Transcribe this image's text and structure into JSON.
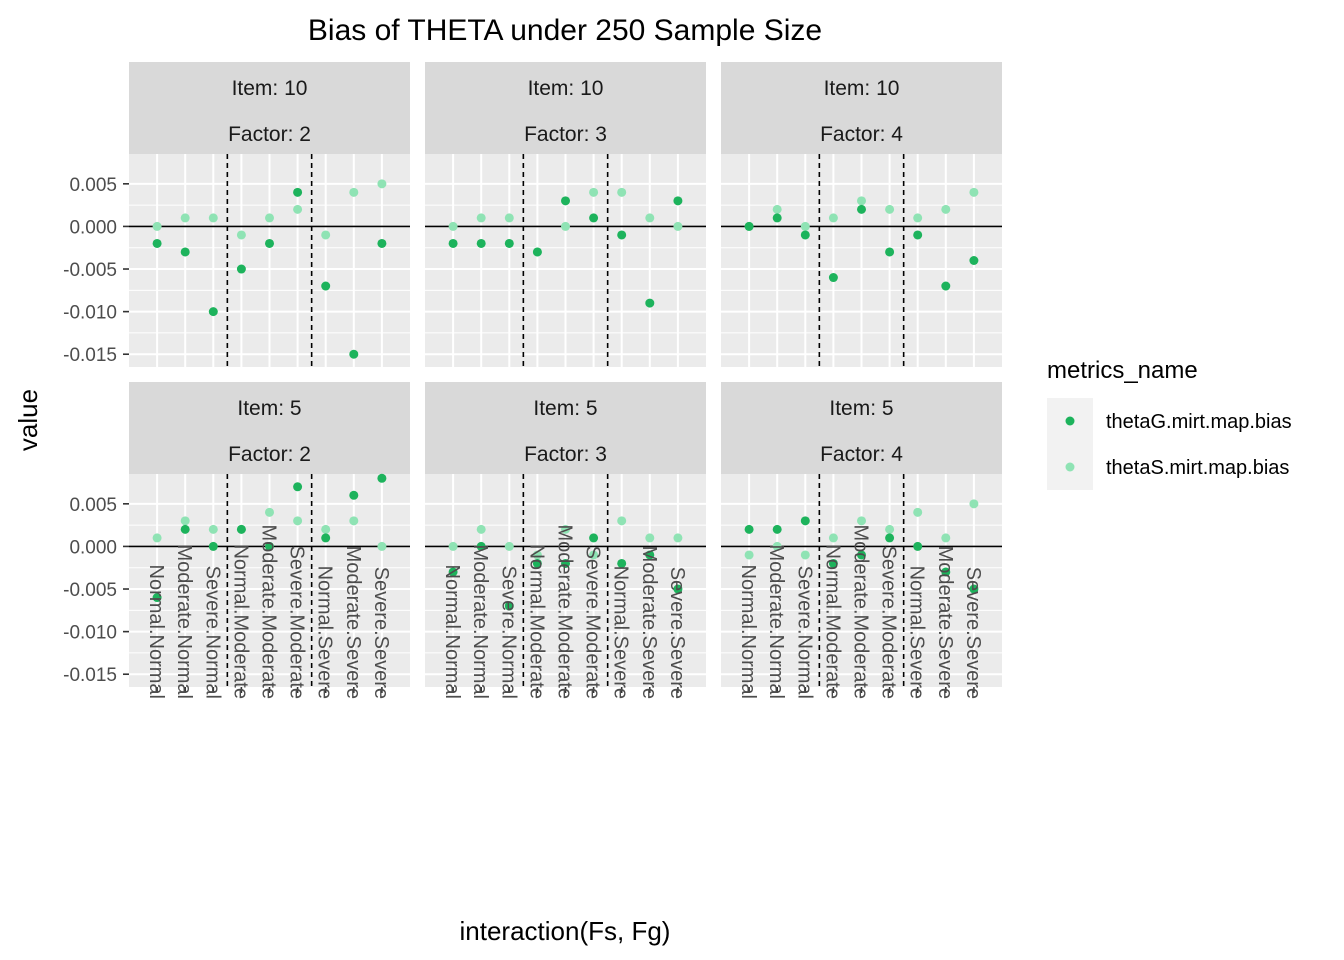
{
  "chart_data": {
    "type": "scatter",
    "title": "Bias of THETA under 250 Sample Size",
    "xlabel": "interaction(Fs, Fg)",
    "ylabel": "value",
    "ylim": [
      -0.0165,
      0.0085
    ],
    "yticks": [
      0.005,
      0.0,
      -0.005,
      -0.01,
      -0.015
    ],
    "ytick_labels": [
      "0.005",
      "0.000",
      "-0.005",
      "-0.010",
      "-0.015"
    ],
    "categories": [
      "Normal.Normal",
      "Moderate.Normal",
      "Severe.Normal",
      "Normal.Moderate",
      "Moderate.Moderate",
      "Severe.Moderate",
      "Normal.Severe",
      "Moderate.Severe",
      "Severe.Severe"
    ],
    "grid": true,
    "hline": 0,
    "vlines_between": [
      3,
      6
    ],
    "legend": {
      "title": "metrics_name",
      "position": "right",
      "entries": [
        {
          "name": "thetaG.mirt.map.bias",
          "color": "#1db35c"
        },
        {
          "name": "thetaS.mirt.map.bias",
          "color": "#8fe3b4"
        }
      ]
    },
    "facets": [
      {
        "strip": [
          "Item: 10",
          "Factor: 2"
        ],
        "thetaG": [
          -0.002,
          -0.003,
          -0.01,
          -0.005,
          -0.002,
          0.004,
          -0.007,
          -0.015,
          -0.002
        ],
        "thetaS": [
          0.0,
          0.001,
          0.001,
          -0.001,
          0.001,
          0.002,
          -0.001,
          0.004,
          0.005
        ]
      },
      {
        "strip": [
          "Item: 10",
          "Factor: 3"
        ],
        "thetaG": [
          -0.002,
          -0.002,
          -0.002,
          -0.003,
          0.003,
          0.001,
          -0.001,
          -0.009,
          0.003
        ],
        "thetaS": [
          0.0,
          0.001,
          0.001,
          -0.003,
          0.0,
          0.004,
          0.004,
          0.001,
          0.0
        ]
      },
      {
        "strip": [
          "Item: 10",
          "Factor: 4"
        ],
        "thetaG": [
          0.0,
          0.001,
          -0.001,
          -0.006,
          0.002,
          -0.003,
          -0.001,
          -0.007,
          -0.004
        ],
        "thetaS": [
          0.0,
          0.002,
          0.0,
          0.001,
          0.003,
          0.002,
          0.001,
          0.002,
          0.004
        ]
      },
      {
        "strip": [
          "Item: 5",
          "Factor: 2"
        ],
        "thetaG": [
          -0.006,
          0.002,
          0.0,
          0.002,
          0.0,
          0.007,
          0.001,
          0.006,
          0.008
        ],
        "thetaS": [
          0.001,
          0.003,
          0.002,
          0.002,
          0.004,
          0.003,
          0.002,
          0.003,
          0.0
        ]
      },
      {
        "strip": [
          "Item: 5",
          "Factor: 3"
        ],
        "thetaG": [
          -0.003,
          0.0,
          -0.007,
          -0.002,
          -0.002,
          0.001,
          -0.002,
          -0.001,
          -0.005
        ],
        "thetaS": [
          0.0,
          0.002,
          0.0,
          -0.001,
          0.002,
          -0.001,
          0.003,
          0.001,
          0.001
        ]
      },
      {
        "strip": [
          "Item: 5",
          "Factor: 4"
        ],
        "thetaG": [
          0.002,
          0.002,
          0.003,
          -0.002,
          -0.001,
          0.001,
          0.0,
          -0.003,
          -0.005
        ],
        "thetaS": [
          -0.001,
          0.0,
          -0.001,
          0.001,
          0.003,
          0.002,
          0.004,
          0.001,
          0.005
        ]
      }
    ]
  }
}
